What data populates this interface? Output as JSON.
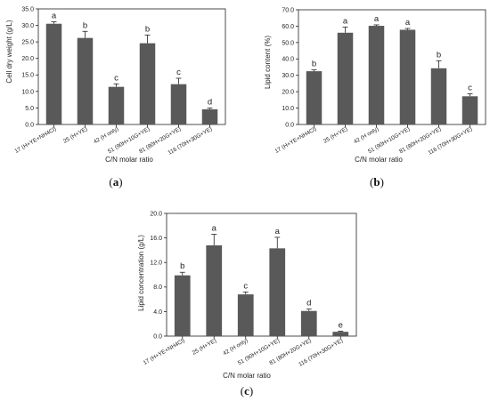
{
  "chart_data": [
    {
      "type": "bar",
      "panel_label": "(a)",
      "ylabel": "Cell dry weight (g/L)",
      "xlabel": "C/N molar ratio",
      "ylim": [
        0,
        35
      ],
      "yticks": [
        "0.0",
        "5.0",
        "10.0",
        "15.0",
        "20.0",
        "25.0",
        "30.0",
        "35.0"
      ],
      "categories": [
        "17 (H+YE+NH4Cl)",
        "25 (H+YE)",
        "42 (H only)",
        "51 (90H+10G+YE)",
        "81 (80H+20G+YE)",
        "116 (70H+30G+YE)"
      ],
      "values": [
        30.5,
        26.2,
        11.4,
        24.6,
        12.2,
        4.6
      ],
      "errors": [
        0.6,
        2.0,
        0.9,
        2.5,
        1.8,
        0.4
      ],
      "significance": [
        "a",
        "b",
        "c",
        "b",
        "c",
        "d"
      ],
      "bar_color": "#595959"
    },
    {
      "type": "bar",
      "panel_label": "(b)",
      "ylabel": "Lipid content (%)",
      "xlabel": "C/N molar ratio",
      "ylim": [
        0,
        70
      ],
      "yticks": [
        "0.0",
        "10.0",
        "20.0",
        "30.0",
        "40.0",
        "50.0",
        "60.0",
        "70.0"
      ],
      "categories": [
        "17 (H+YE+NH4Cl)",
        "25 (H+YE)",
        "42 (H only)",
        "51 (90H+10G+YE)",
        "81 (80H+20G+YE)",
        "116 (70H+30G+YE)"
      ],
      "values": [
        32.5,
        56.0,
        60.2,
        57.8,
        34.3,
        17.2
      ],
      "errors": [
        0.8,
        3.5,
        0.6,
        0.8,
        4.6,
        1.5
      ],
      "significance": [
        "b",
        "a",
        "a",
        "a",
        "b",
        "c"
      ],
      "bar_color": "#595959"
    },
    {
      "type": "bar",
      "panel_label": "(c)",
      "ylabel": "Lipid concentration (g/L)",
      "xlabel": "C/N molar ratio",
      "ylim": [
        0,
        20
      ],
      "yticks": [
        "0.0",
        "4.0",
        "8.0",
        "12.0",
        "16.0",
        "20.0"
      ],
      "categories": [
        "17 (H+YE+NH4Cl)",
        "25 (H+YE)",
        "42 (H only)",
        "51 (90H+10G+YE)",
        "81 (80H+20G+YE)",
        "116 (70H+30G+YE)"
      ],
      "values": [
        9.9,
        14.8,
        6.8,
        14.3,
        4.1,
        0.7
      ],
      "errors": [
        0.5,
        1.8,
        0.4,
        1.8,
        0.3,
        0.1
      ],
      "significance": [
        "b",
        "a",
        "c",
        "a",
        "d",
        "e"
      ],
      "bar_color": "#595959"
    }
  ]
}
